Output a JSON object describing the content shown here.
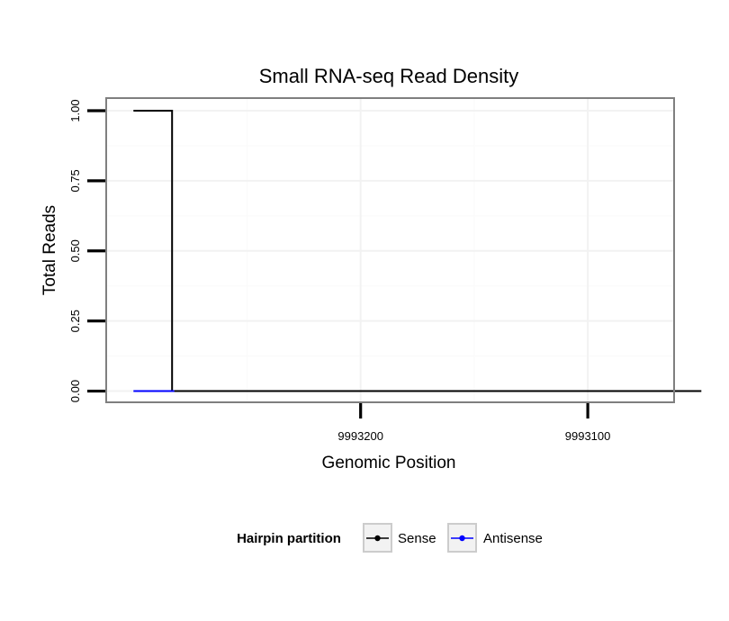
{
  "chart_data": {
    "type": "line",
    "title": "Small RNA-seq Read Density",
    "xlabel": "Genomic Position",
    "ylabel": "Total Reads",
    "x_reversed": true,
    "xlim": [
      9993312,
      9993062
    ],
    "ylim": [
      -0.04,
      1.045
    ],
    "x_ticks": [
      {
        "value": 9993200,
        "label": "9993200"
      },
      {
        "value": 9993100,
        "label": "9993100"
      }
    ],
    "y_ticks": [
      {
        "value": 0.0,
        "label": "0.00"
      },
      {
        "value": 0.25,
        "label": "0.25"
      },
      {
        "value": 0.5,
        "label": "0.50"
      },
      {
        "value": 0.75,
        "label": "0.75"
      },
      {
        "value": 1.0,
        "label": "1.00"
      }
    ],
    "grid": true,
    "legend": {
      "title": "Hairpin partition",
      "position": "bottom"
    },
    "series": [
      {
        "name": "Sense",
        "color": "#000000",
        "step": true,
        "x": [
          9993300,
          9993283,
          9993283,
          9993050
        ],
        "y": [
          1.0,
          1.0,
          0.0,
          0.0
        ]
      },
      {
        "name": "Antisense",
        "color": "#0000ff",
        "step": true,
        "x": [
          9993300,
          9993282
        ],
        "y": [
          0.0,
          0.0
        ]
      }
    ]
  }
}
